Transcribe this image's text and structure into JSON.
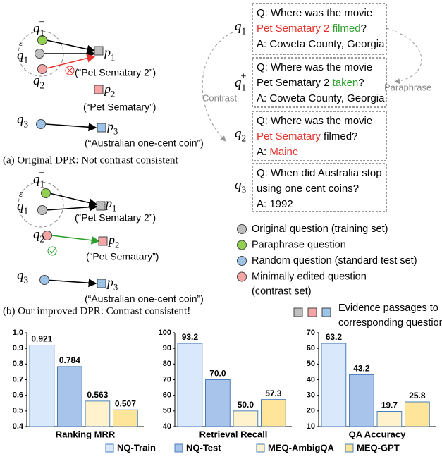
{
  "diagram": {
    "panels": [
      {
        "q1_plus": {
          "base": "q",
          "sub": "1",
          "sup": "+"
        },
        "q1": {
          "base": "q",
          "sub": "1"
        },
        "q2": {
          "base": "q",
          "sub": "2"
        },
        "q3": {
          "base": "q",
          "sub": "3"
        },
        "epsilon": "ε",
        "p1": {
          "base": "p",
          "sub": "1"
        },
        "p1_caption": "(“Pet Sematary 2”)",
        "p2": {
          "base": "p",
          "sub": "2"
        },
        "p2_caption": "(“Pet Sematary”)",
        "p3": {
          "base": "p",
          "sub": "3"
        },
        "p3_caption": "(“Australian one-cent coin”)",
        "caption": "(a) Original DPR: Not contrast consistent"
      },
      {
        "q1_plus": {
          "base": "q",
          "sub": "1",
          "sup": "+"
        },
        "q1": {
          "base": "q",
          "sub": "1"
        },
        "q2": {
          "base": "q",
          "sub": "2"
        },
        "q3": {
          "base": "q",
          "sub": "3"
        },
        "epsilon": "ε",
        "p1": {
          "base": "p",
          "sub": "1"
        },
        "p1_caption": "(“Pet Sematary 2”)",
        "p2": {
          "base": "p",
          "sub": "2"
        },
        "p2_caption": "(“Pet Sematary”)",
        "p3": {
          "base": "p",
          "sub": "3"
        },
        "p3_caption": "(“Australian one-cent coin”)",
        "caption": "(b) Our improved DPR: Contrast consistent!"
      }
    ],
    "examples": [
      {
        "label": {
          "base": "q",
          "sub": "1"
        },
        "lines": [
          [
            {
              "text": "Q: Where was the movie"
            }
          ],
          [
            {
              "text": "Pet Sematary 2 ",
              "color": "#e8312a"
            },
            {
              "text": "filmed",
              "color": "#2ca02c"
            },
            {
              "text": "?"
            }
          ],
          [
            {
              "text": "A: Coweta County, Georgia"
            }
          ]
        ]
      },
      {
        "label": {
          "base": "q",
          "sub": "1",
          "sup": "+"
        },
        "lines": [
          [
            {
              "text": "Q: Where was the movie"
            }
          ],
          [
            {
              "text": "Pet Sematary 2 "
            },
            {
              "text": "taken",
              "color": "#2ca02c"
            },
            {
              "text": "?"
            }
          ],
          [
            {
              "text": "A: Coweta County, Georgia"
            }
          ]
        ]
      },
      {
        "label": {
          "base": "q",
          "sub": "2"
        },
        "lines": [
          [
            {
              "text": "Q: Where was the movie"
            }
          ],
          [
            {
              "text": "Pet Sematary",
              "color": "#e8312a"
            },
            {
              "text": " filmed?"
            }
          ],
          [
            {
              "text": "A: "
            },
            {
              "text": "Maine",
              "color": "#e8312a"
            }
          ]
        ]
      },
      {
        "label": {
          "base": "q",
          "sub": "3"
        },
        "lines": [
          [
            {
              "text": "Q: When did Australia stop"
            }
          ],
          [
            {
              "text": "using one cent coins?"
            }
          ],
          [
            {
              "text": "A: 1992"
            }
          ]
        ]
      }
    ],
    "contrast": "Contrast",
    "paraphrase": "Paraphrase",
    "legend": [
      {
        "color": "#bfbfbf",
        "lines": [
          "Original question (training set)"
        ]
      },
      {
        "color": "#92d050",
        "lines": [
          "Paraphrase question"
        ]
      },
      {
        "color": "#9dc3e6",
        "lines": [
          "Random question (standard test set)"
        ]
      },
      {
        "color": "#f4a6a6",
        "lines": [
          "Minimally edited question",
          "(contrast set)"
        ]
      }
    ],
    "passages": {
      "colors": [
        "#bfbfbf",
        "#f4a6a6",
        "#9dc3e6"
      ],
      "lines": [
        "Evidence passages to",
        "corresponding questions"
      ]
    }
  },
  "bar_legend": [
    {
      "name": "NQ-Train",
      "color": "#dae8fc"
    },
    {
      "name": "NQ-Test",
      "color": "#a9c4eb"
    },
    {
      "name": "MEQ-AmbigQA",
      "color": "#fff2cc"
    },
    {
      "name": "MEQ-GPT",
      "color": "#ffe599"
    }
  ],
  "chart_data": [
    {
      "type": "bar",
      "xlabel": "Ranking MRR",
      "values": [
        0.921,
        0.784,
        0.563,
        0.507
      ],
      "ylim": [
        0.4,
        1.0
      ],
      "yticks": [
        0.4,
        0.5,
        0.6,
        0.7,
        0.8,
        0.9,
        {
          "value": 1.0,
          "label": "1.0"
        }
      ]
    },
    {
      "type": "bar",
      "xlabel": "Retrieval Recall",
      "values": [
        93.2,
        70.0,
        50.0,
        57.3
      ],
      "value_labels": [
        "93.2",
        "70.0",
        "50.0",
        "57.3"
      ],
      "ylim": [
        40,
        100
      ],
      "yticks": [
        40,
        50,
        60,
        70,
        80,
        90,
        100
      ]
    },
    {
      "type": "bar",
      "xlabel": "QA Accuracy",
      "values": [
        63.2,
        43.2,
        19.7,
        25.8
      ],
      "ylim": [
        10,
        70
      ],
      "yticks": [
        10,
        20,
        30,
        40,
        50,
        60,
        70
      ]
    }
  ]
}
